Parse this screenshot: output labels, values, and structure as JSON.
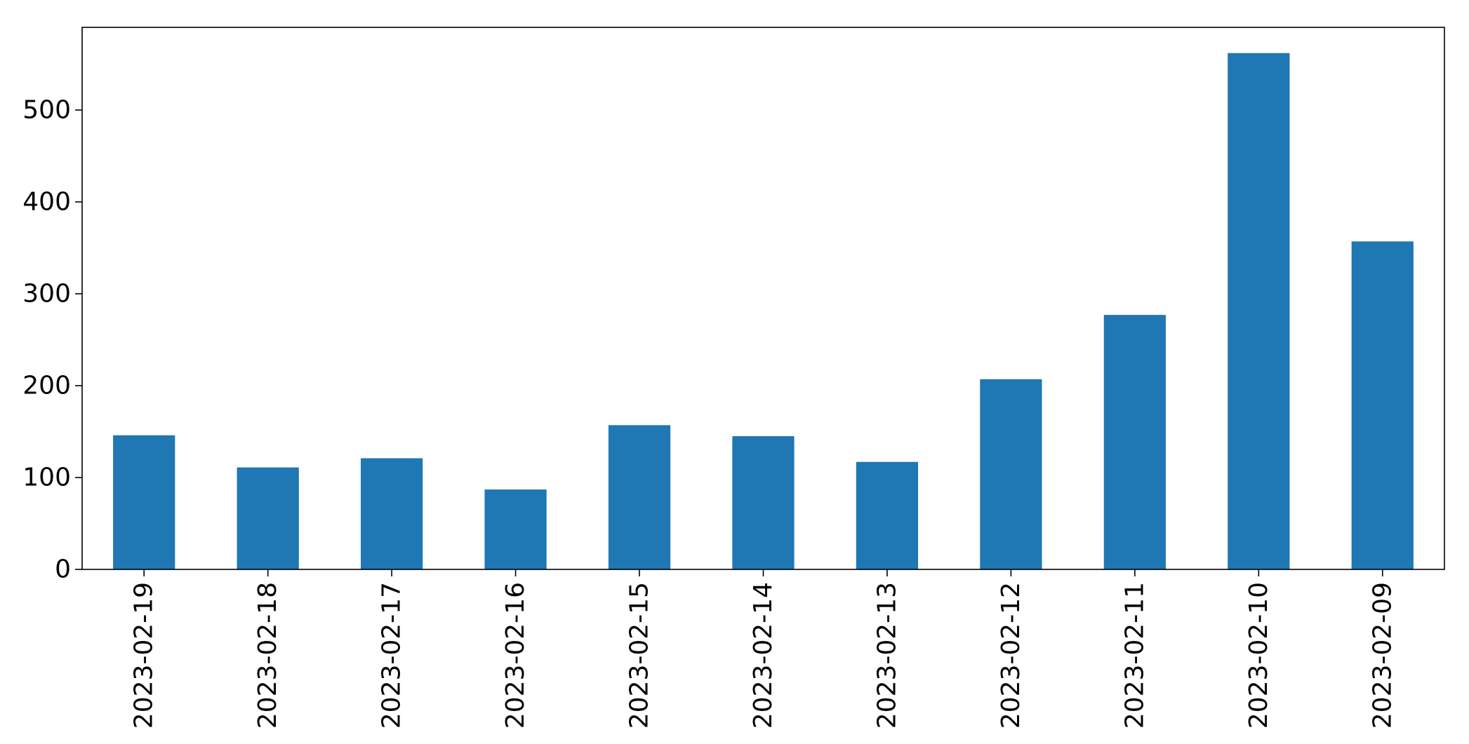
{
  "chart_data": {
    "type": "bar",
    "categories": [
      "2023-02-19",
      "2023-02-18",
      "2023-02-17",
      "2023-02-16",
      "2023-02-15",
      "2023-02-14",
      "2023-02-13",
      "2023-02-12",
      "2023-02-11",
      "2023-02-10",
      "2023-02-09"
    ],
    "values": [
      146,
      111,
      121,
      87,
      157,
      145,
      117,
      207,
      277,
      562,
      357
    ],
    "title": "",
    "xlabel": "",
    "ylabel": "",
    "ylim": [
      0,
      590
    ],
    "yticks": [
      0,
      100,
      200,
      300,
      400,
      500
    ],
    "grid": false,
    "legend": "none",
    "colors": {
      "bar": "#1f77b4",
      "axis": "#000000",
      "text": "#000000"
    }
  }
}
